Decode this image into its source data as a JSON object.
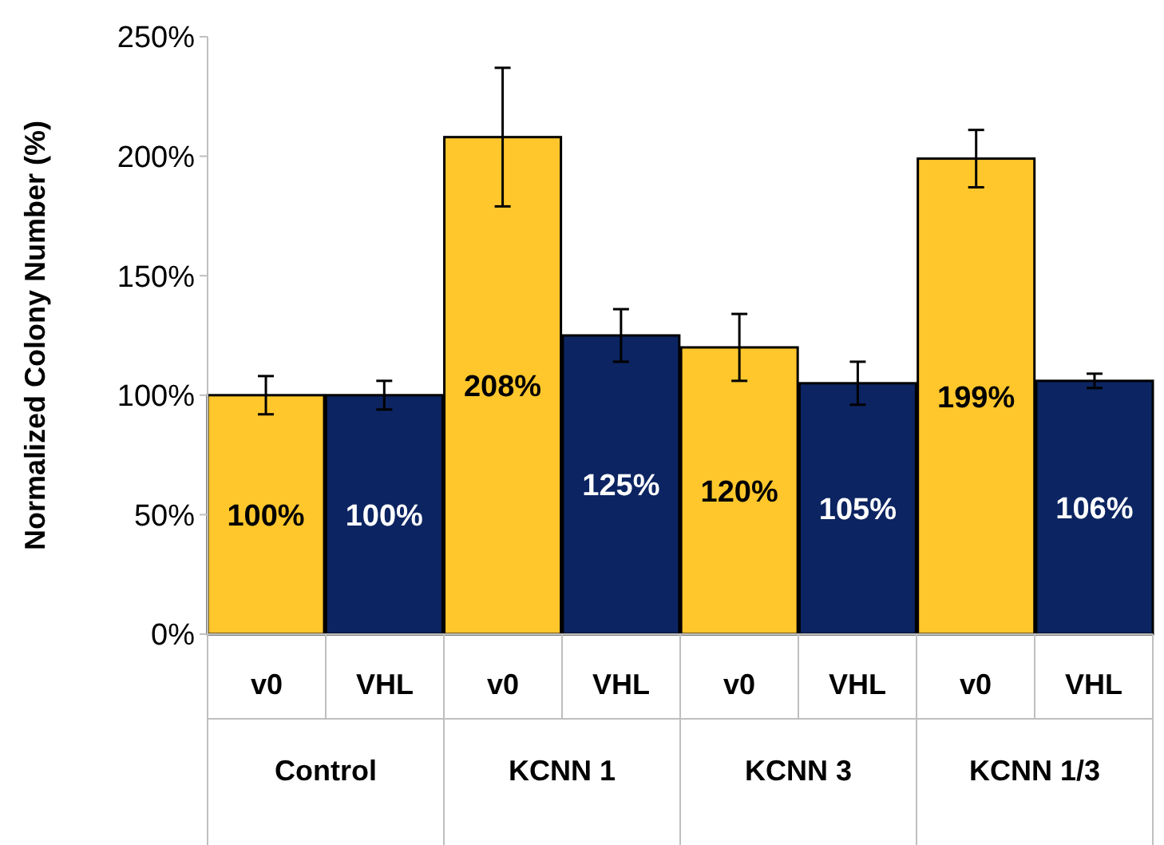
{
  "chart_data": {
    "type": "bar",
    "ylabel": "Normalized Colony Number (%)",
    "categories": [
      "v0",
      "VHL",
      "v0",
      "VHL",
      "v0",
      "VHL",
      "v0",
      "VHL"
    ],
    "values": [
      100,
      100,
      208,
      125,
      120,
      105,
      199,
      106
    ],
    "colors": [
      "#ffc72c",
      "#0c2461",
      "#ffc72c",
      "#0c2461",
      "#ffc72c",
      "#0c2461",
      "#ffc72c",
      "#0c2461"
    ],
    "errors": [
      8,
      6,
      29,
      11,
      14,
      9,
      12,
      3
    ],
    "value_labels": [
      "100%",
      "100%",
      "208%",
      "125%",
      "120%",
      "105%",
      "199%",
      "106%"
    ],
    "annotations": [
      "Control",
      "KCNN 1",
      "KCNN 3",
      "KCNN 1/3"
    ],
    "ylim": [
      0,
      250
    ],
    "yticks": [
      {
        "value": 0,
        "label": "0%"
      },
      {
        "value": 50,
        "label": "50%"
      },
      {
        "value": 100,
        "label": "100%"
      },
      {
        "value": 150,
        "label": "150%"
      },
      {
        "value": 200,
        "label": "200%"
      },
      {
        "value": 250,
        "label": "250%"
      }
    ],
    "grid": false
  }
}
